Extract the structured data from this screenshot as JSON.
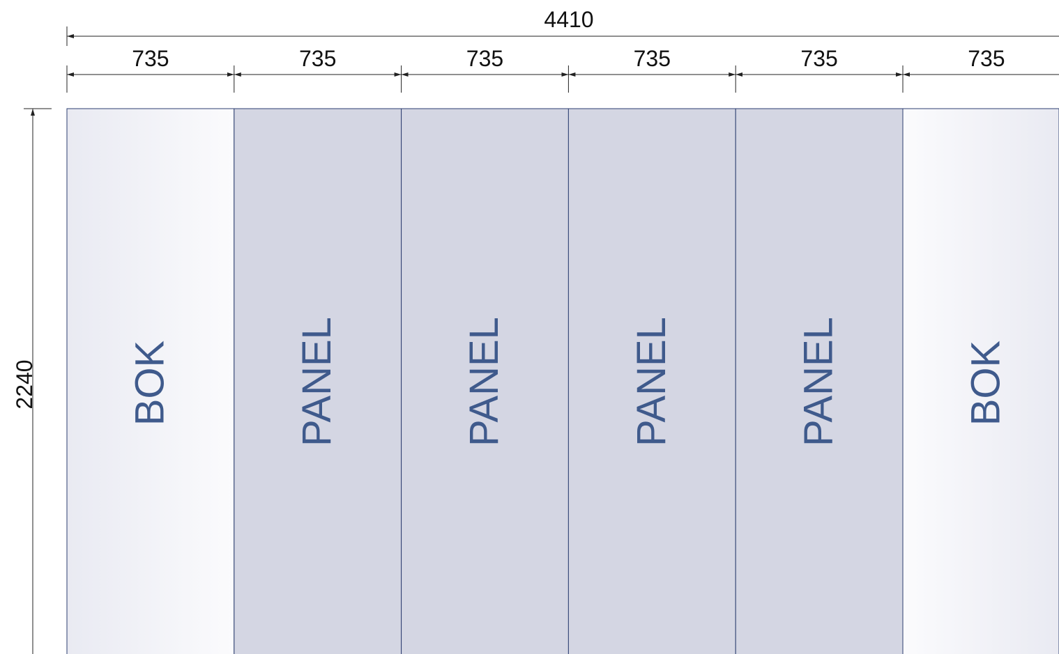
{
  "total_width": "4410",
  "height": "2240",
  "colors": {
    "panel_fill": "#d4d6e3",
    "side_light": "#fbfbfd",
    "side_dark": "#e9eaf2",
    "label": "#3f5a8c",
    "line": "#2c3e70",
    "dim_line": "#222222"
  },
  "segments": [
    {
      "width": "735",
      "label": "BOK",
      "kind": "side"
    },
    {
      "width": "735",
      "label": "PANEL",
      "kind": "panel"
    },
    {
      "width": "735",
      "label": "PANEL",
      "kind": "panel"
    },
    {
      "width": "735",
      "label": "PANEL",
      "kind": "panel"
    },
    {
      "width": "735",
      "label": "PANEL",
      "kind": "panel"
    },
    {
      "width": "735",
      "label": "BOK",
      "kind": "side"
    }
  ]
}
